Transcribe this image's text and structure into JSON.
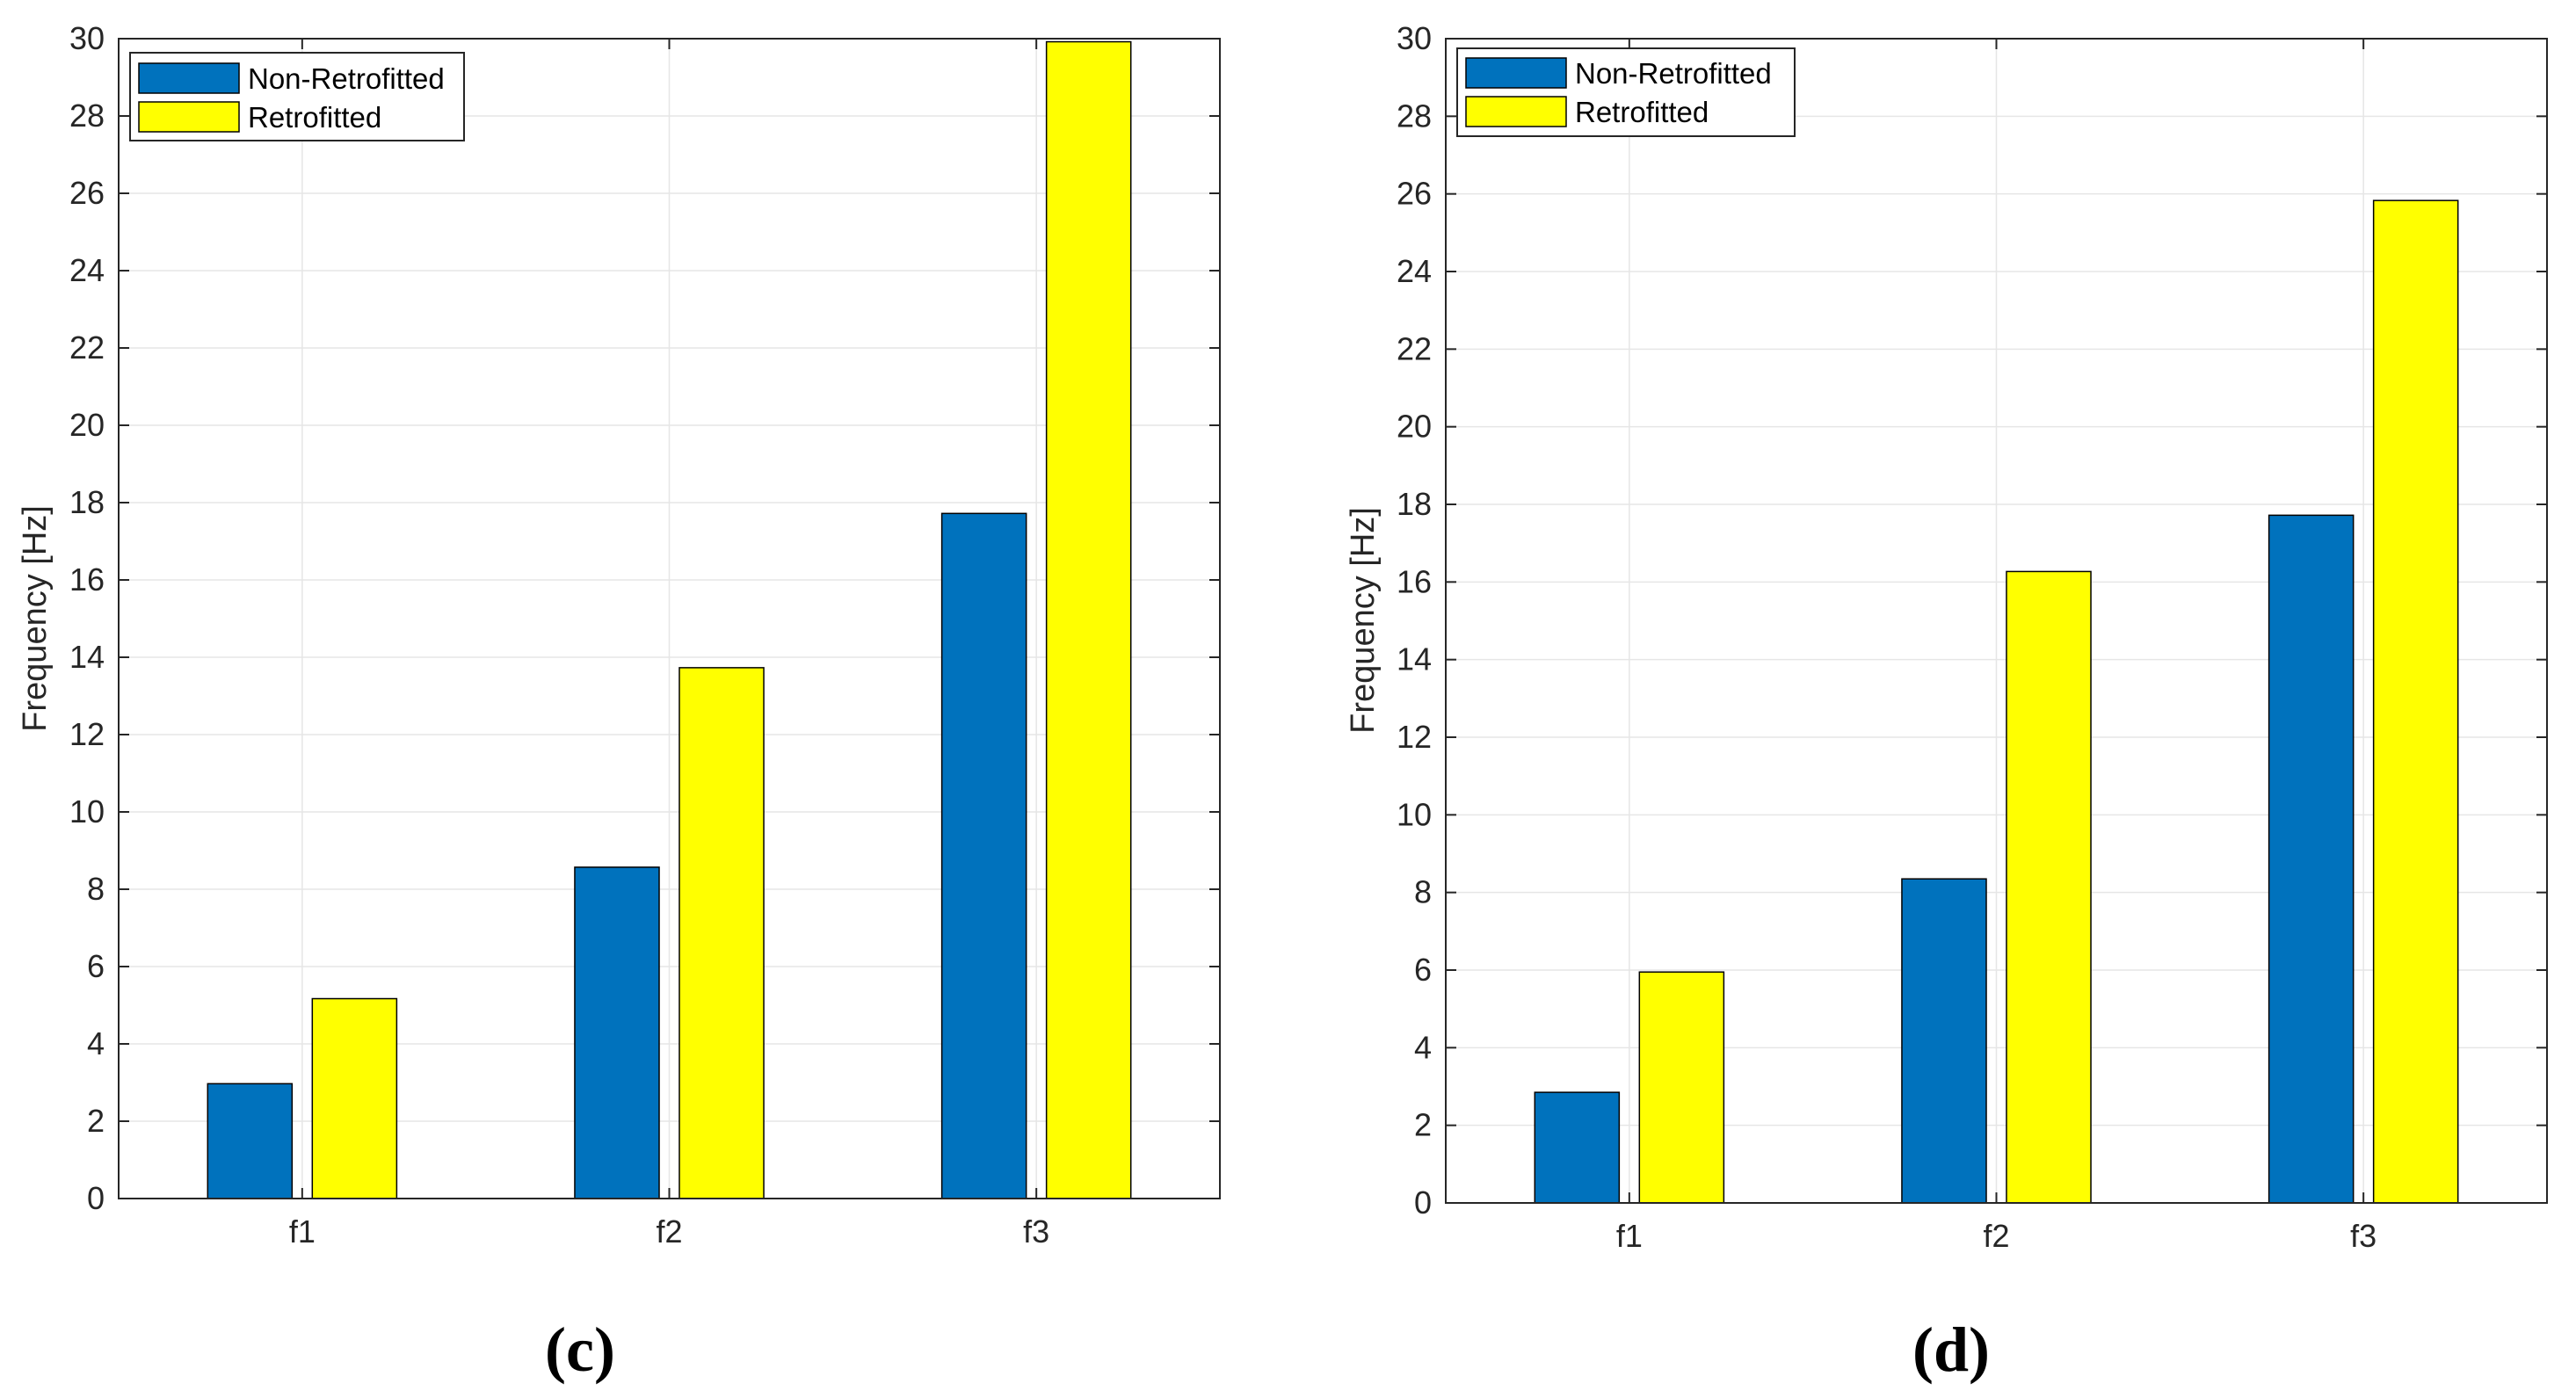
{
  "colors": {
    "non_retrofitted": "#0072BD",
    "retrofitted": "#FFFF00",
    "grid": "#E6E6E6",
    "axis": "#262626",
    "bar_edge": "#000000"
  },
  "chart_data": [
    {
      "type": "bar",
      "caption": "(c)",
      "categories": [
        "f1",
        "f2",
        "f3"
      ],
      "series": [
        {
          "name": "Non-Retrofitted",
          "values": [
            2.97,
            8.57,
            17.72
          ]
        },
        {
          "name": "Retrofitted",
          "values": [
            5.17,
            13.73,
            29.92
          ]
        }
      ],
      "title": "",
      "xlabel": "",
      "ylabel": "Frequency [Hz]",
      "ylim": [
        0,
        30
      ],
      "yticks": [
        0,
        2,
        4,
        6,
        8,
        10,
        12,
        14,
        16,
        18,
        20,
        22,
        24,
        26,
        28,
        30
      ],
      "yticklabels": [
        "0",
        "2",
        "4",
        "6",
        "8",
        "10",
        "12",
        "14",
        "16",
        "18",
        "20",
        "22",
        "24",
        "26",
        "28",
        "30"
      ],
      "grid": true,
      "legend_position": "top-left"
    },
    {
      "type": "bar",
      "caption": "(d)",
      "categories": [
        "f1",
        "f2",
        "f3"
      ],
      "series": [
        {
          "name": "Non-Retrofitted",
          "values": [
            2.85,
            8.35,
            17.72
          ]
        },
        {
          "name": "Retrofitted",
          "values": [
            5.95,
            16.27,
            25.83
          ]
        }
      ],
      "title": "",
      "xlabel": "",
      "ylabel": "Frequency [Hz]",
      "ylim": [
        0,
        30
      ],
      "yticks": [
        0,
        2,
        4,
        6,
        8,
        10,
        12,
        14,
        16,
        18,
        20,
        22,
        24,
        26,
        28,
        30
      ],
      "yticklabels": [
        "0",
        "2",
        "4",
        "6",
        "8",
        "10",
        "12",
        "14",
        "16",
        "18",
        "20",
        "22",
        "24",
        "26",
        "28",
        "30"
      ],
      "grid": true,
      "legend_position": "top-left"
    }
  ]
}
